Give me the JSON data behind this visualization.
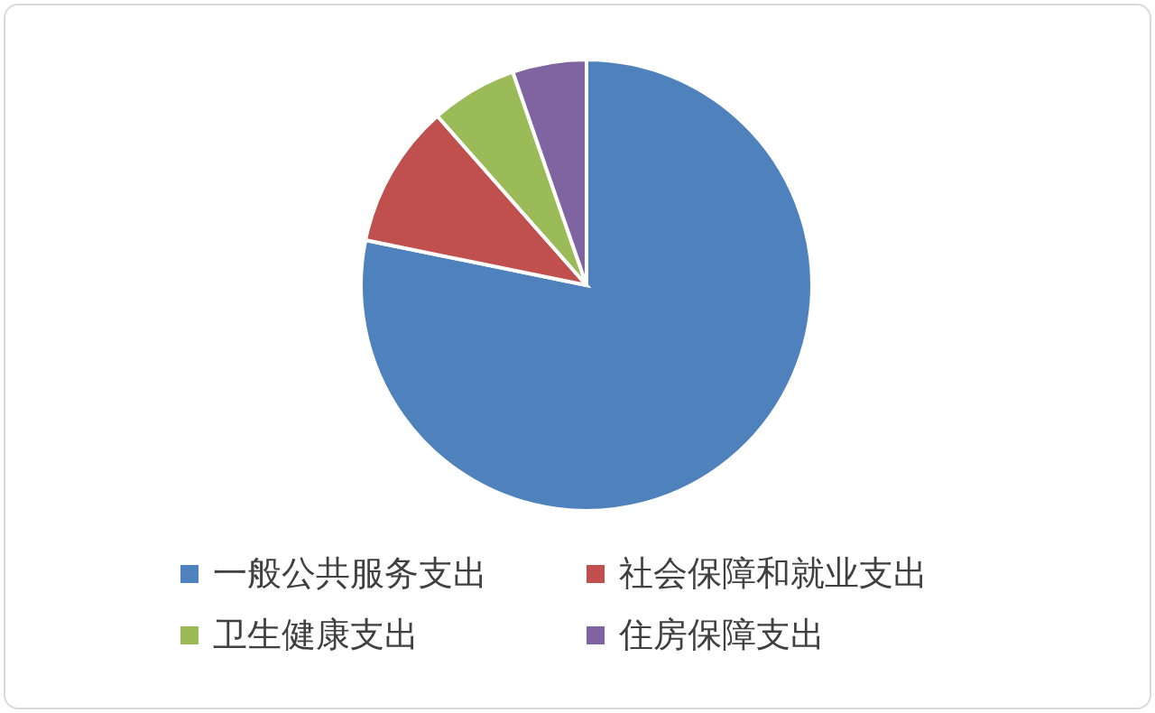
{
  "chart_data": {
    "type": "pie",
    "categories": [
      "一般公共服务支出",
      "社会保障和就业支出",
      "卫生健康支出",
      "住房保障支出"
    ],
    "values": [
      78.2,
      10.3,
      6.2,
      5.3
    ],
    "colors": [
      "#4f81bd",
      "#c0504d",
      "#9bbb59",
      "#8064a2"
    ],
    "legend": "bottom"
  }
}
